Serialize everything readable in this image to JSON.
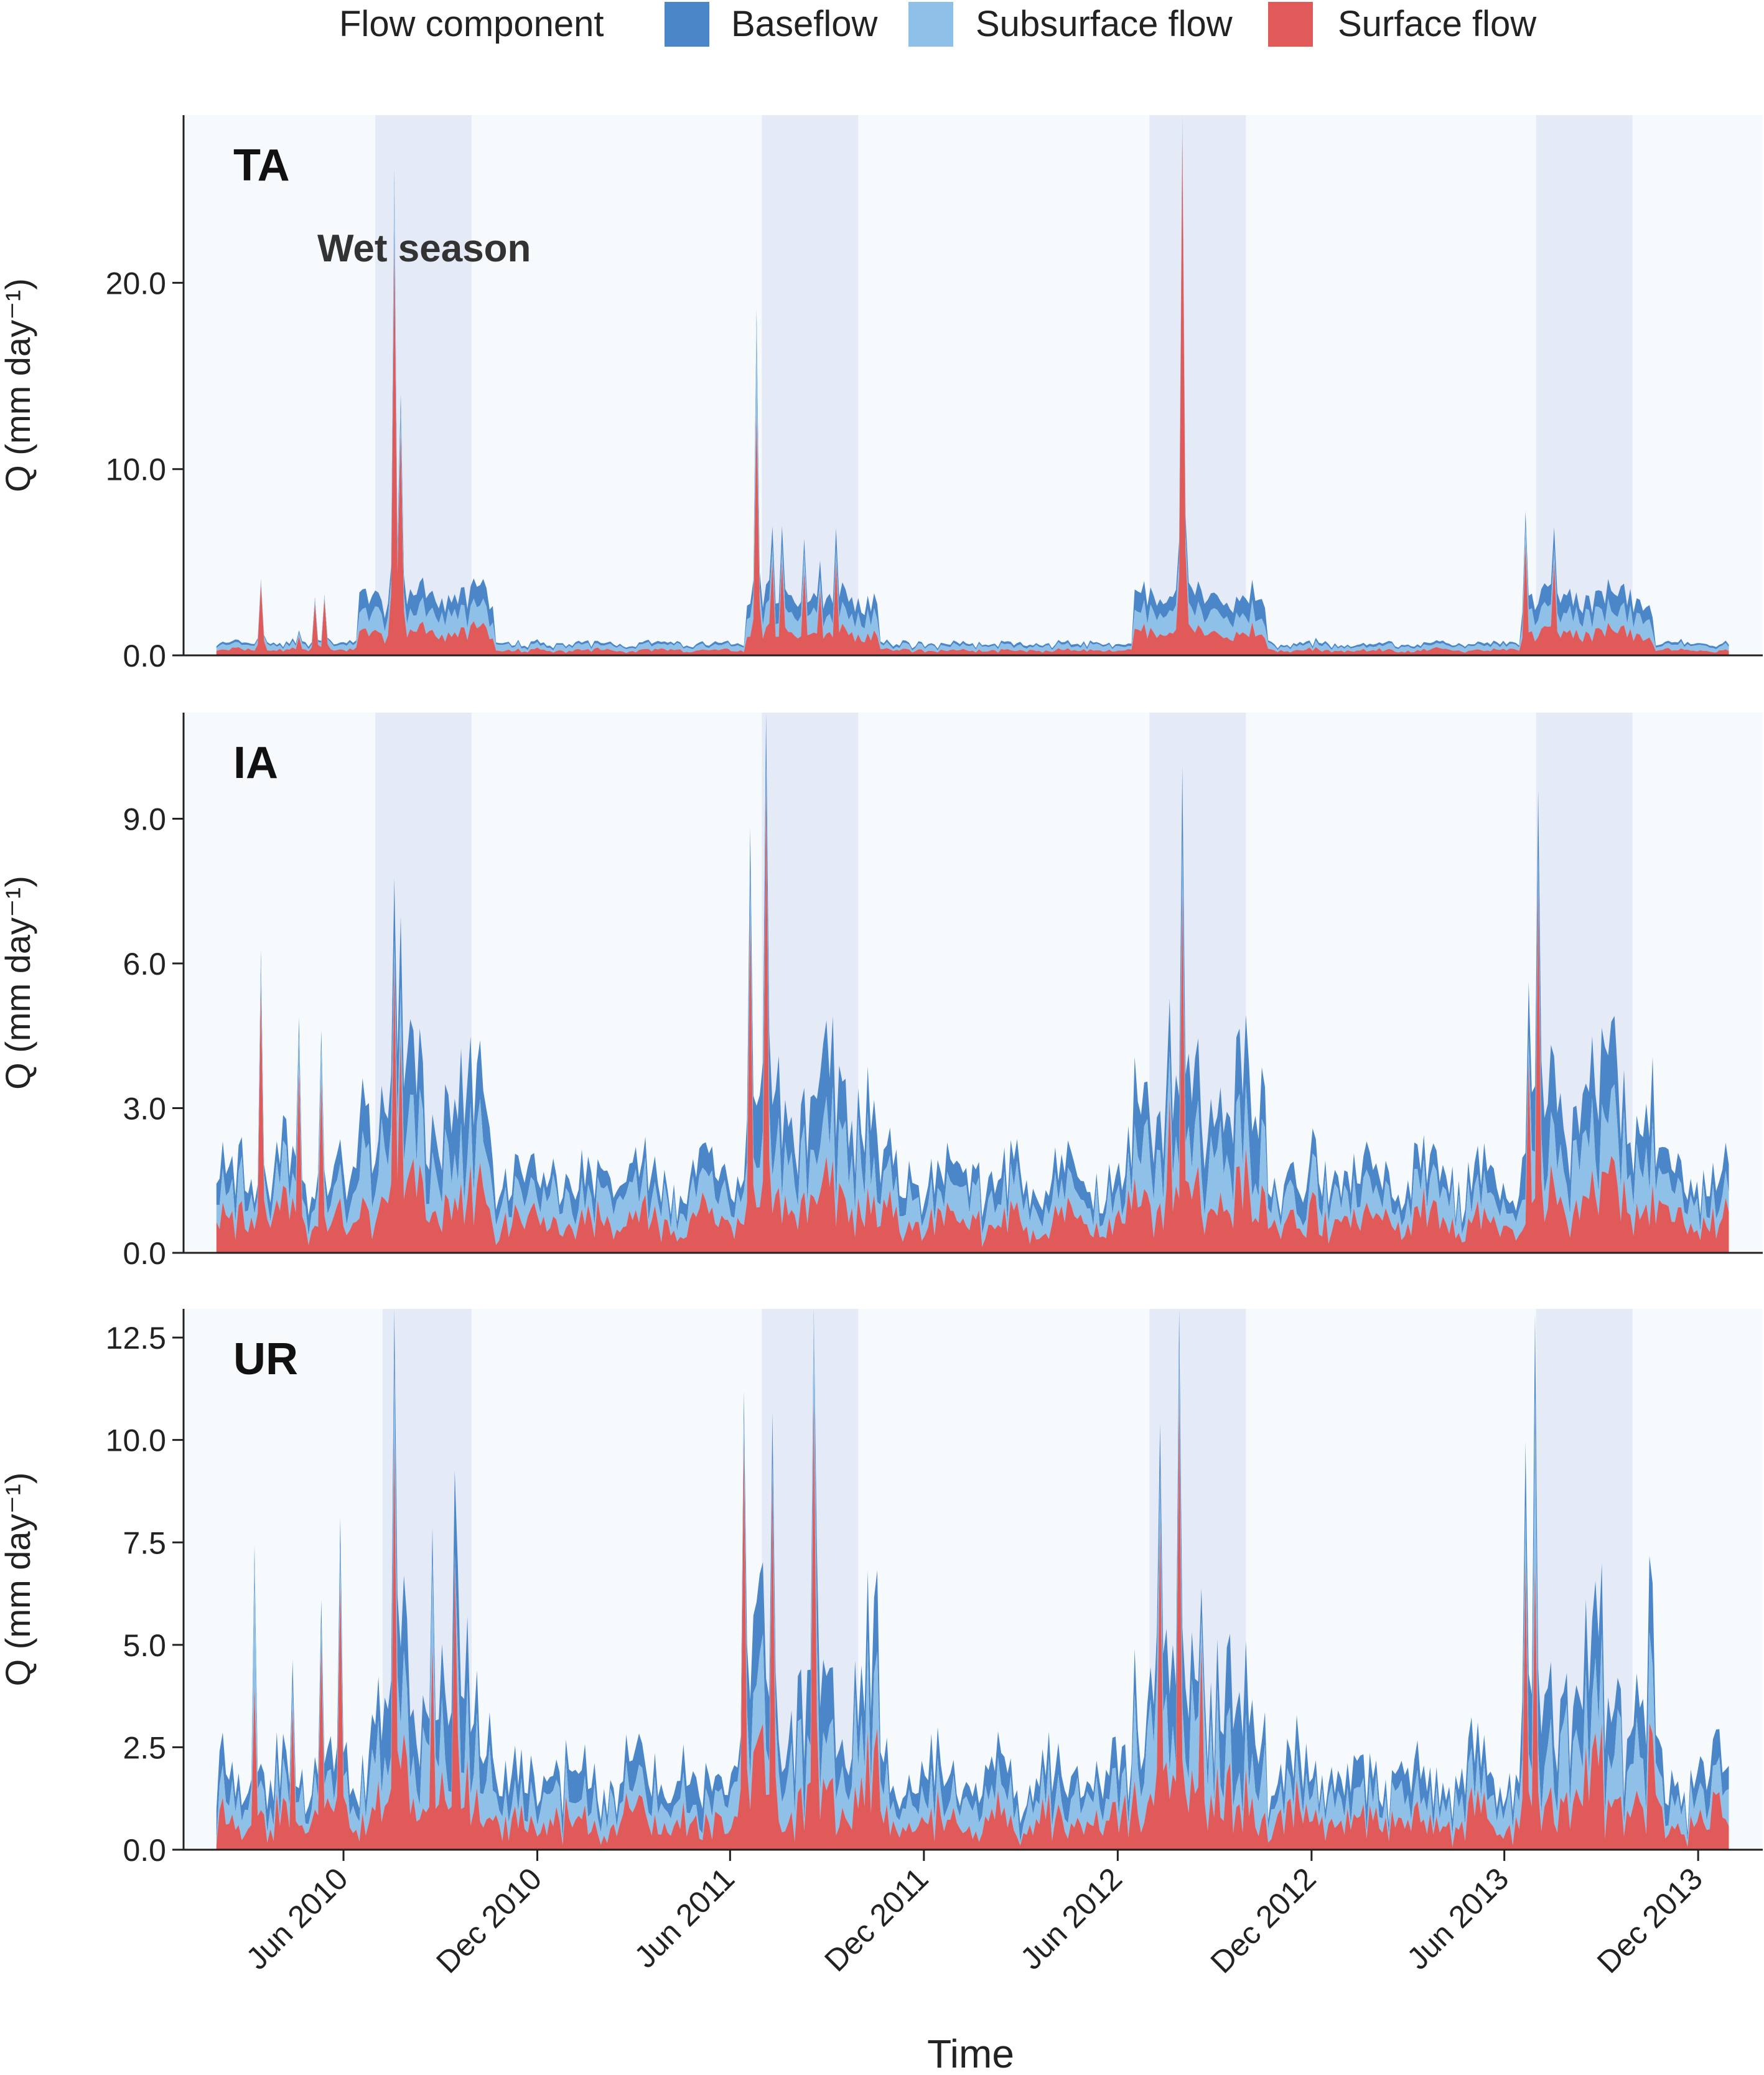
{
  "legend": {
    "title": "Flow component",
    "items": [
      {
        "label": "Baseflow",
        "color": "#4a86c8"
      },
      {
        "label": "Subsurface flow",
        "color": "#8fc0e8"
      },
      {
        "label": "Surface flow",
        "color": "#e05a5a"
      }
    ]
  },
  "wet_season_label": "Wet season",
  "colors": {
    "plot_bg": "#f6fafd",
    "wet_band": "#e5eaf7",
    "axis": "#222222",
    "baseflow": "#4a86c8",
    "subsurface": "#8fc0e8",
    "surface": "#e05a5a"
  },
  "chart_data": [
    {
      "type": "area",
      "stacked": true,
      "panel": "TA",
      "ylabel": "Q (mm day⁻¹)",
      "ylim": [
        0,
        29
      ],
      "yticks": [
        0,
        10,
        20
      ],
      "ytick_labels": [
        "0.0",
        "10.0",
        "20.0"
      ],
      "wet_seasons": [
        [
          "2010-07-01",
          "2010-09-30"
        ],
        [
          "2011-07-01",
          "2011-09-30"
        ],
        [
          "2012-07-01",
          "2012-09-30"
        ],
        [
          "2013-07-01",
          "2013-09-30"
        ]
      ],
      "profile": {
        "dry": [
          0.1,
          0.15,
          0.2
        ],
        "wet": [
          0.9,
          0.9,
          1.1
        ],
        "rest": [
          0.05,
          0.18,
          0.14
        ],
        "wobble": 0.35
      },
      "spikes": [
        {
          "date": "2010-03-15",
          "surface": 3.8
        },
        {
          "date": "2010-04-20",
          "surface": 1.0
        },
        {
          "date": "2010-05-05",
          "surface": 2.8
        },
        {
          "date": "2010-05-15",
          "surface": 3.0
        },
        {
          "date": "2010-07-20",
          "surface": 22,
          "subsurface": 2
        },
        {
          "date": "2010-07-26",
          "surface": 12
        },
        {
          "date": "2011-06-25",
          "surface": 13,
          "subsurface": 4
        },
        {
          "date": "2011-07-10",
          "surface": 5
        },
        {
          "date": "2011-07-20",
          "surface": 5
        },
        {
          "date": "2011-08-10",
          "surface": 4.5
        },
        {
          "date": "2011-08-25",
          "surface": 3.5
        },
        {
          "date": "2011-09-10",
          "surface": 5
        },
        {
          "date": "2012-08-01",
          "surface": 28
        },
        {
          "date": "2013-06-20",
          "surface": 6
        },
        {
          "date": "2013-07-18",
          "surface": 5
        }
      ]
    },
    {
      "type": "area",
      "stacked": true,
      "panel": "IA",
      "ylabel": "Q (mm day⁻¹)",
      "ylim": [
        0,
        11.2
      ],
      "yticks": [
        0,
        3,
        6,
        9
      ],
      "ytick_labels": [
        "0.0",
        "3.0",
        "6.0",
        "9.0"
      ],
      "wet_seasons": [
        [
          "2010-07-01",
          "2010-09-30"
        ],
        [
          "2011-07-01",
          "2011-09-30"
        ],
        [
          "2012-07-01",
          "2012-09-30"
        ],
        [
          "2013-07-01",
          "2013-09-30"
        ]
      ],
      "profile": {
        "dry": [
          0.3,
          0.35,
          0.4
        ],
        "wet": [
          1.0,
          0.8,
          0.8
        ],
        "rest": [
          0.4,
          0.35,
          0.5
        ],
        "wobble": 0.7
      },
      "spikes": [
        {
          "date": "2010-03-15",
          "surface": 5.5
        },
        {
          "date": "2010-04-20",
          "surface": 3.8
        },
        {
          "date": "2010-05-10",
          "surface": 3.6
        },
        {
          "date": "2010-07-18",
          "surface": 6
        },
        {
          "date": "2010-07-25",
          "surface": 4.5
        },
        {
          "date": "2011-06-20",
          "surface": 7
        },
        {
          "date": "2011-07-05",
          "surface": 9.6
        },
        {
          "date": "2012-07-20",
          "surface": 3.2
        },
        {
          "date": "2012-08-01",
          "surface": 7.5
        },
        {
          "date": "2013-06-25",
          "surface": 4
        },
        {
          "date": "2013-07-03",
          "surface": 7.6
        }
      ]
    },
    {
      "type": "area",
      "stacked": true,
      "panel": "UR",
      "ylabel": "Q (mm day⁻¹)",
      "ylim": [
        0,
        13.2
      ],
      "yticks": [
        0,
        2.5,
        5,
        7.5,
        10,
        12.5
      ],
      "ytick_labels": [
        "0.0",
        "2.5",
        "5.0",
        "7.5",
        "10.0",
        "12.5"
      ],
      "xlabel": "Time",
      "xdomain": [
        "2010-01-01",
        "2014-01-31"
      ],
      "xticks": [
        "2010-06-01",
        "2010-12-01",
        "2011-06-01",
        "2011-12-01",
        "2012-06-01",
        "2012-12-01",
        "2013-06-01",
        "2013-12-01"
      ],
      "xtick_labels": [
        "Jun 2010",
        "Dec 2010",
        "Jun 2011",
        "Dec 2011",
        "Jun 2012",
        "Dec 2012",
        "Jun 2013",
        "Dec 2013"
      ],
      "wet_seasons": [
        [
          "2010-07-08",
          "2010-09-30"
        ],
        [
          "2011-07-01",
          "2011-09-30"
        ],
        [
          "2012-07-01",
          "2012-09-30"
        ],
        [
          "2013-07-01",
          "2013-09-30"
        ]
      ],
      "profile": {
        "dry": [
          0.4,
          0.35,
          0.4
        ],
        "wet": [
          1.2,
          1.0,
          1.0
        ],
        "rest": [
          0.5,
          0.45,
          0.6
        ],
        "wobble": 0.9
      },
      "spikes": [
        {
          "date": "2010-03-10",
          "surface": 4,
          "subsurface": 2
        },
        {
          "date": "2010-04-15",
          "surface": 3.5
        },
        {
          "date": "2010-05-10",
          "surface": 5
        },
        {
          "date": "2010-05-28",
          "surface": 6.5
        },
        {
          "date": "2010-07-20",
          "surface": 10,
          "subsurface": 1.5
        },
        {
          "date": "2010-08-25",
          "surface": 5
        },
        {
          "date": "2010-09-15",
          "surface": 7
        },
        {
          "date": "2011-06-15",
          "surface": 10
        },
        {
          "date": "2011-07-10",
          "surface": 9
        },
        {
          "date": "2011-08-20",
          "surface": 11
        },
        {
          "date": "2012-07-10",
          "surface": 8
        },
        {
          "date": "2012-07-28",
          "surface": 11
        },
        {
          "date": "2012-08-20",
          "surface": 5
        },
        {
          "date": "2013-06-20",
          "surface": 7
        },
        {
          "date": "2013-07-01",
          "surface": 7,
          "subsurface": 2.5
        }
      ]
    }
  ]
}
